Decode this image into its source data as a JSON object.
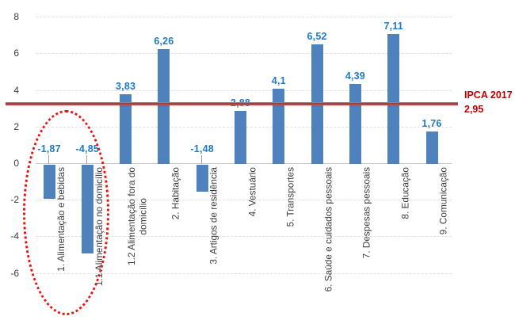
{
  "chart_data": {
    "type": "bar",
    "title": "",
    "xlabel": "",
    "ylabel": "",
    "categories": [
      "1. Alimentação e bebidas",
      "1.1 Alimentação no domicílio",
      "1.2 Alimentação fora do domicílio",
      "2. Habitação",
      "3. Artigos de residência",
      "4. Vestuário",
      "5. Transportes",
      "6. Saúde e cuidados pessoais",
      "7. Despesas pessoais",
      "8. Educação",
      "9. Comunicação"
    ],
    "values": [
      -1.87,
      -4.85,
      3.83,
      6.26,
      -1.48,
      2.88,
      4.1,
      6.52,
      4.39,
      7.11,
      1.76
    ],
    "value_labels": [
      "-1,87",
      "-4,85",
      "3,83",
      "6,26",
      "-1,48",
      "2,88",
      "4,1",
      "6,52",
      "4,39",
      "7,11",
      "1,76"
    ],
    "ylim": [
      -6,
      8
    ],
    "yticks": [
      8,
      6,
      4,
      2,
      0,
      -2,
      -4,
      -6
    ],
    "grid": true,
    "legend": "none",
    "reference_line": {
      "value": 2.95,
      "label": "IPCA 2017",
      "value_text": "2,95",
      "line_color": "#a23b3d",
      "text_color": "#c00000"
    },
    "annotation": {
      "type": "dotted-ellipse",
      "color": "#e81414",
      "around_categories": [
        "1. Alimentação e bebidas",
        "1.1 Alimentação no domicílio"
      ]
    },
    "colors": {
      "bar": "#4f81bd",
      "value_label": "#1f7ac4",
      "gridline": "#e0e0e0",
      "axis_line": "#c6c6c6",
      "tick_text": "#3d3d3d",
      "leader_line": "#a6a6a6"
    }
  }
}
